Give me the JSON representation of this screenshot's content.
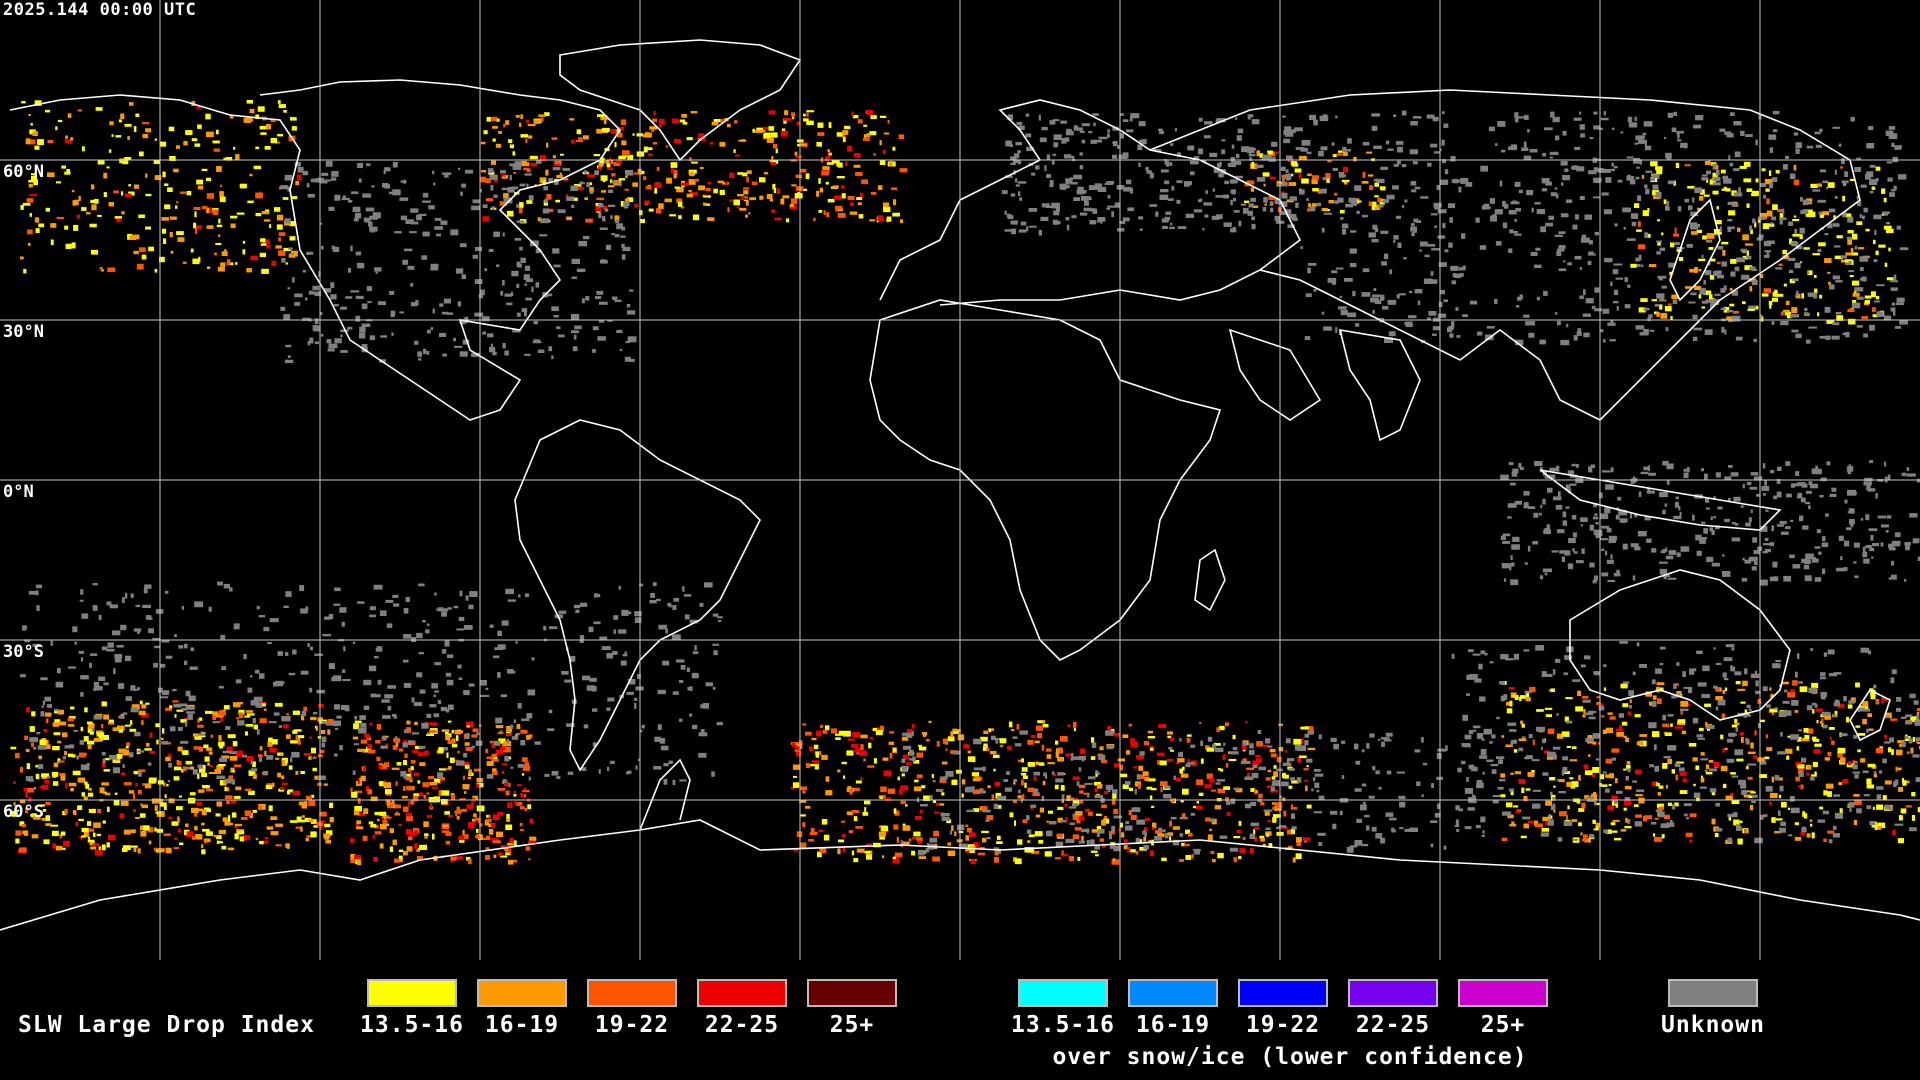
{
  "timestamp": "2025.144 00:00 UTC",
  "latitude_labels": [
    "60°N",
    "30°N",
    "0°N",
    "30°S",
    "60°S"
  ],
  "legend": {
    "title": "SLW Large Drop Index",
    "liquid": [
      {
        "label": "13.5-16",
        "color": "#ffff00"
      },
      {
        "label": "16-19",
        "color": "#ff9900"
      },
      {
        "label": "19-22",
        "color": "#ff5500"
      },
      {
        "label": "22-25",
        "color": "#ee0000"
      },
      {
        "label": "25+",
        "color": "#660000"
      }
    ],
    "snow_ice": [
      {
        "label": "13.5-16",
        "color": "#00ffff"
      },
      {
        "label": "16-19",
        "color": "#0088ff"
      },
      {
        "label": "19-22",
        "color": "#0000ff"
      },
      {
        "label": "22-25",
        "color": "#7700ee"
      },
      {
        "label": "25+",
        "color": "#cc00cc"
      }
    ],
    "snow_ice_caption": "over snow/ice (lower confidence)",
    "unknown": {
      "label": "Unknown",
      "color": "#808080"
    }
  }
}
